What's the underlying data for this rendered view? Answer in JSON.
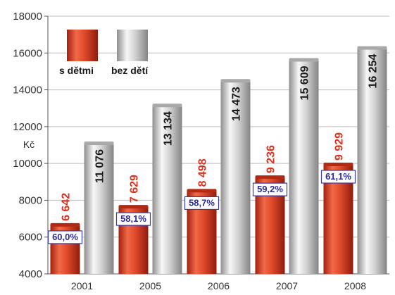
{
  "chart_data": {
    "type": "bar",
    "ylabel": "Kč",
    "ylim": [
      4000,
      18000
    ],
    "yticks": [
      "4000",
      "6000",
      "8000",
      "10000",
      "12000",
      "14000",
      "16000",
      "18000"
    ],
    "grid": true,
    "legend_position": "top-left",
    "categories": [
      "2001",
      "2005",
      "2006",
      "2007",
      "2008"
    ],
    "series": [
      {
        "name": "s dětmi",
        "values": [
          6642,
          7629,
          8498,
          9236,
          9929
        ],
        "labels": [
          "6 642",
          "7 629",
          "8 498",
          "9 236",
          "9 929"
        ],
        "color": "#d2381f"
      },
      {
        "name": "bez dětí",
        "values": [
          11076,
          13134,
          14473,
          15609,
          16254
        ],
        "labels": [
          "11 076",
          "13 134",
          "14 473",
          "15 609",
          "16 254"
        ],
        "color": "#c8c8c8"
      }
    ],
    "ratio_labels": [
      "60,0%",
      "58,1%",
      "58,7%",
      "59,2%",
      "61,1%"
    ]
  }
}
